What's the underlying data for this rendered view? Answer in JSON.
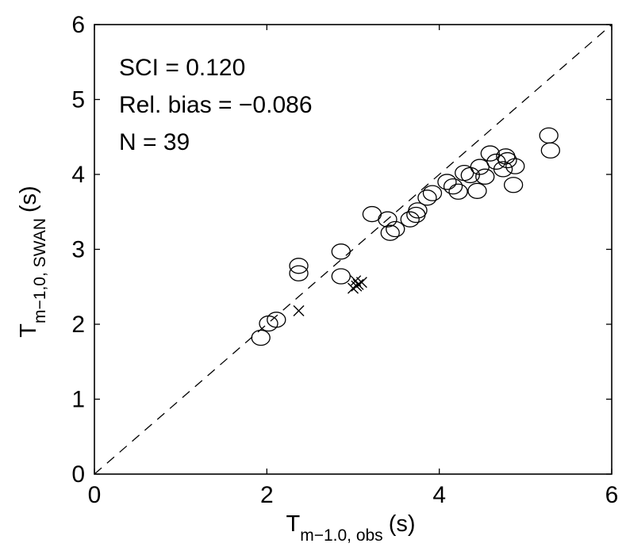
{
  "chart_data": {
    "type": "scatter",
    "xlabel": {
      "main": "T",
      "sub": "m−1.0, obs",
      "unit": "(s)"
    },
    "ylabel": {
      "main": "T",
      "sub": "m−1,0, SWAN",
      "unit": "(s)"
    },
    "xlim": [
      0,
      6
    ],
    "ylim": [
      0,
      6
    ],
    "xticks": [
      "0",
      "2",
      "4",
      "6"
    ],
    "yticks": [
      "0",
      "1",
      "2",
      "3",
      "4",
      "5",
      "6"
    ],
    "grid": false,
    "reference_line": "y = x (dashed)",
    "annotations": [
      "SCI = 0.120",
      "Rel. bias = −0.086",
      "N = 39"
    ],
    "series": [
      {
        "marker": "circle",
        "points": [
          [
            1.93,
            1.82
          ],
          [
            2.02,
            2.01
          ],
          [
            2.11,
            2.06
          ],
          [
            2.37,
            2.78
          ],
          [
            2.37,
            2.68
          ],
          [
            2.86,
            2.97
          ],
          [
            2.86,
            2.64
          ],
          [
            3.22,
            3.47
          ],
          [
            3.4,
            3.4
          ],
          [
            3.43,
            3.22
          ],
          [
            3.49,
            3.27
          ],
          [
            3.66,
            3.4
          ],
          [
            3.73,
            3.46
          ],
          [
            3.75,
            3.52
          ],
          [
            3.86,
            3.69
          ],
          [
            3.92,
            3.75
          ],
          [
            4.09,
            3.9
          ],
          [
            4.16,
            3.84
          ],
          [
            4.22,
            3.77
          ],
          [
            4.29,
            4.02
          ],
          [
            4.36,
            3.99
          ],
          [
            4.44,
            3.78
          ],
          [
            4.47,
            4.1
          ],
          [
            4.53,
            3.97
          ],
          [
            4.59,
            4.28
          ],
          [
            4.66,
            4.17
          ],
          [
            4.74,
            4.07
          ],
          [
            4.77,
            4.24
          ],
          [
            4.79,
            4.19
          ],
          [
            4.88,
            4.11
          ],
          [
            4.86,
            3.86
          ],
          [
            5.27,
            4.52
          ],
          [
            5.29,
            4.32
          ]
        ]
      },
      {
        "marker": "cross",
        "points": [
          [
            2.37,
            2.18
          ],
          [
            3.0,
            2.48
          ],
          [
            3.03,
            2.58
          ],
          [
            3.1,
            2.56
          ],
          [
            3.06,
            2.53
          ],
          [
            3.04,
            2.51
          ]
        ]
      }
    ]
  }
}
